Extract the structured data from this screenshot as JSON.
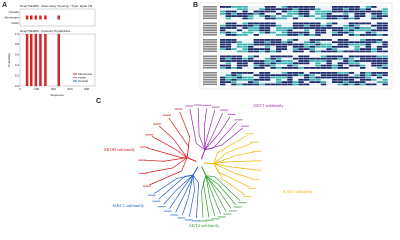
{
  "panels": {
    "a": {
      "label": "A",
      "topology": {
        "title": "DeepTMHMM - Most Likely Topology / Type: alpha TM",
        "rows": [
          "Outside",
          "Membrane",
          "Inside"
        ]
      },
      "probability": {
        "title": "DeepTMHMM - Posterior Probabilities",
        "ylabel": "Probability",
        "xlabel": "Sequence",
        "xlim": [
          0,
          900
        ],
        "xticks": [
          0,
          200,
          400,
          600,
          800
        ],
        "ylim": [
          0,
          1
        ],
        "yticks": [
          {
            "value": 0,
            "label": "0.0"
          },
          {
            "value": 0.2,
            "label": "0.2"
          },
          {
            "value": 0.4,
            "label": "0.4"
          },
          {
            "value": 0.6,
            "label": "0.6"
          },
          {
            "value": 0.8,
            "label": "0.8"
          },
          {
            "value": 1,
            "label": "1.0"
          }
        ],
        "legend": [
          "Membrane",
          "Inside",
          "Outside"
        ],
        "colors": [
          "#d62728",
          "#e377c2",
          "#1f77b4"
        ],
        "helices": [
          [
            70,
            100
          ],
          [
            120,
            150
          ],
          [
            175,
            205
          ],
          [
            230,
            260
          ],
          [
            290,
            320
          ],
          [
            450,
            480
          ]
        ]
      }
    },
    "b": {
      "label": "B"
    },
    "c": {
      "label": "C",
      "clades": [
        {
          "name": "SKOR subfamily",
          "color": "#d7191c"
        },
        {
          "name": "AKT1 subfamily",
          "color": "#9c27b0"
        },
        {
          "name": "KAT1 subfamily",
          "color": "#f0b400"
        },
        {
          "name": "AKT2 subfamily",
          "color": "#2ca02c"
        },
        {
          "name": "AtKC1 subfamily",
          "color": "#1f5fd0"
        }
      ]
    }
  }
}
